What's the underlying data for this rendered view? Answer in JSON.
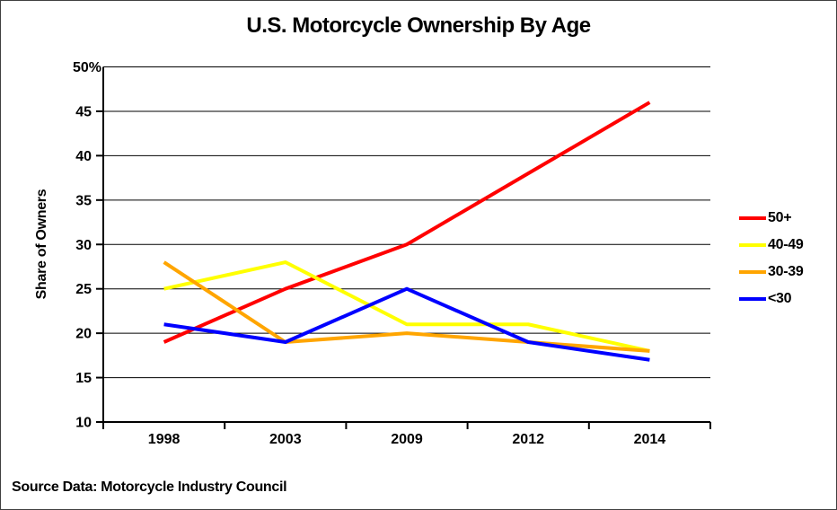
{
  "window": {
    "background": "#ffffff",
    "border_color": "#404040"
  },
  "chart_data": {
    "type": "line",
    "title": "U.S. Motorcycle Ownership By Age",
    "xlabel": "",
    "ylabel": "Share of Owners",
    "categories": [
      "1998",
      "2003",
      "2009",
      "2012",
      "2014"
    ],
    "series": [
      {
        "name": "50+",
        "color": "#ff0000",
        "values": [
          19,
          25,
          30,
          38,
          46
        ]
      },
      {
        "name": "40-49",
        "color": "#ffff00",
        "values": [
          25,
          28,
          21,
          21,
          18
        ]
      },
      {
        "name": "30-39",
        "color": "#ffa500",
        "values": [
          28,
          19,
          20,
          19,
          18
        ]
      },
      {
        "name": "<30",
        "color": "#0000ff",
        "values": [
          21,
          19,
          25,
          19,
          17
        ]
      }
    ],
    "ylim": [
      10,
      50
    ],
    "ytick_step": 5,
    "ytick_labels": [
      "10",
      "15",
      "20",
      "25",
      "30",
      "35",
      "40",
      "45",
      "50%"
    ],
    "grid": true,
    "grid_color": "#000000",
    "axis_color": "#000000",
    "legend_position": "right"
  },
  "footer": {
    "source": "Source Data: Motorcycle Industry Council"
  }
}
